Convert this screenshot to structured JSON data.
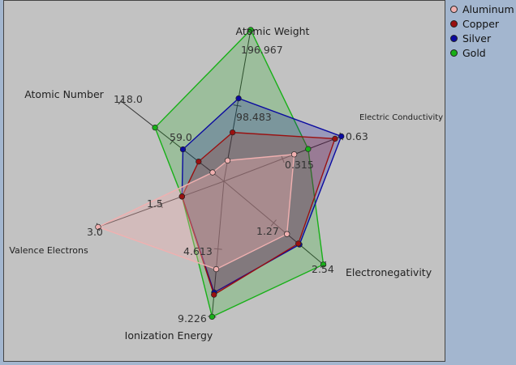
{
  "chart_data": {
    "type": "radar",
    "axes": [
      {
        "label": "Atomic Weight",
        "max": 196.967,
        "mid_label": "98.483",
        "max_label": "196.967"
      },
      {
        "label": "Electric Conductivity",
        "max": 0.63,
        "mid_label": "0.315",
        "max_label": "0.63"
      },
      {
        "label": "Electronegativity",
        "max": 2.54,
        "mid_label": "1.27",
        "max_label": "2.54"
      },
      {
        "label": "Ionization Energy",
        "max": 9.226,
        "mid_label": "4.613",
        "max_label": "9.226"
      },
      {
        "label": "Valence Electrons",
        "max": 3.0,
        "mid_label": "1.5",
        "max_label": "3.0"
      },
      {
        "label": "Atomic Number",
        "max": 118.0,
        "mid_label": "59.0",
        "max_label": "118.0"
      }
    ],
    "series": [
      {
        "name": "Aluminum",
        "color": "#f0b0b0",
        "values": [
          26.98,
          0.377,
          1.61,
          5.986,
          3,
          13
        ]
      },
      {
        "name": "Copper",
        "color": "#9a1010",
        "values": [
          63.546,
          0.596,
          1.9,
          7.726,
          1,
          29
        ]
      },
      {
        "name": "Silver",
        "color": "#0a0aa0",
        "values": [
          107.868,
          0.63,
          1.93,
          7.576,
          1,
          47
        ]
      },
      {
        "name": "Gold",
        "color": "#18b018",
        "values": [
          196.967,
          0.452,
          2.54,
          9.226,
          1,
          79
        ]
      }
    ],
    "legend": "top-right"
  }
}
